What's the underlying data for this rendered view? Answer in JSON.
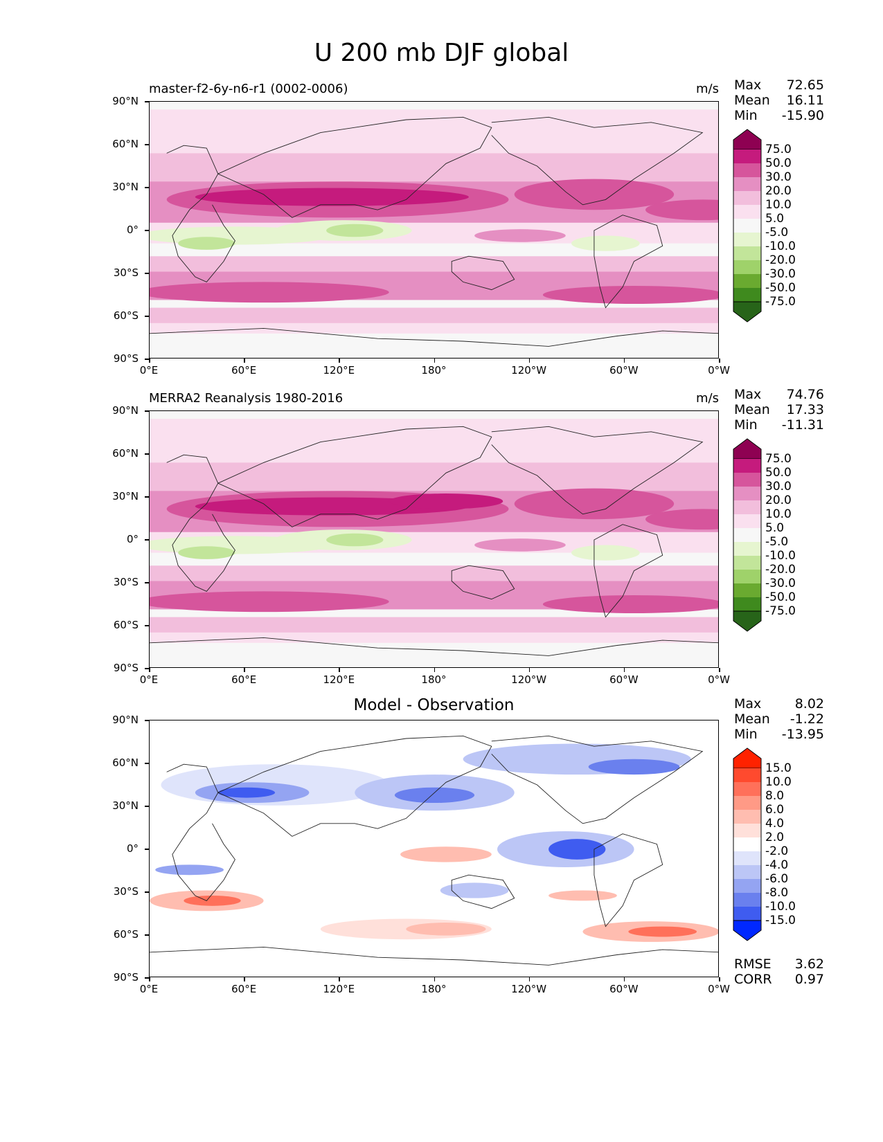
{
  "figure_title": "U 200 mb DJF global",
  "lat_ticks": [
    "90°N",
    "60°N",
    "30°N",
    "0°",
    "30°S",
    "60°S",
    "90°S"
  ],
  "lon_ticks": [
    "0°E",
    "60°E",
    "120°E",
    "180°",
    "120°W",
    "60°W",
    "0°W"
  ],
  "panels": [
    {
      "title": "master-f2-6y-n6-r1 (0002-0006)",
      "units": "m/s",
      "stats": {
        "max_label": "Max",
        "max": "72.65",
        "mean_label": "Mean",
        "mean": "16.11",
        "min_label": "Min",
        "min": "-15.90"
      },
      "colorbar_levels": [
        "75.0",
        "50.0",
        "30.0",
        "20.0",
        "10.0",
        "5.0",
        "-5.0",
        "-10.0",
        "-20.0",
        "-30.0",
        "-50.0",
        "-75.0"
      ]
    },
    {
      "title": "MERRA2 Reanalysis 1980-2016",
      "units": "m/s",
      "stats": {
        "max_label": "Max",
        "max": "74.76",
        "mean_label": "Mean",
        "mean": "17.33",
        "min_label": "Min",
        "min": "-11.31"
      },
      "colorbar_levels": [
        "75.0",
        "50.0",
        "30.0",
        "20.0",
        "10.0",
        "5.0",
        "-5.0",
        "-10.0",
        "-20.0",
        "-30.0",
        "-50.0",
        "-75.0"
      ]
    },
    {
      "title": "Model - Observation",
      "units": "",
      "stats": {
        "max_label": "Max",
        "max": "8.02",
        "mean_label": "Mean",
        "mean": "-1.22",
        "min_label": "Min",
        "min": "-13.95"
      },
      "colorbar_levels": [
        "15.0",
        "10.0",
        "8.0",
        "6.0",
        "4.0",
        "2.0",
        "-2.0",
        "-4.0",
        "-6.0",
        "-8.0",
        "-10.0",
        "-15.0"
      ],
      "metrics": {
        "rmse_label": "RMSE",
        "rmse": "3.62",
        "corr_label": "CORR",
        "corr": "0.97"
      }
    }
  ],
  "colors": {
    "field_scale": [
      "#8e0152",
      "#c51b7d",
      "#d6559c",
      "#e58fc2",
      "#f2bedc",
      "#fae0ef",
      "#f7f7f7",
      "#e6f5d0",
      "#c2e59a",
      "#9fd26a",
      "#6aaa30",
      "#3f8a1e",
      "#276419"
    ],
    "diff_scale": [
      "#ff2200",
      "#ff4a2e",
      "#ff705a",
      "#ff9a86",
      "#ffbdb0",
      "#ffe0da",
      "#ffffff",
      "#dfe4fb",
      "#bcc6f6",
      "#94a4f2",
      "#6a80ee",
      "#3f5cf0",
      "#0028ff"
    ]
  }
}
